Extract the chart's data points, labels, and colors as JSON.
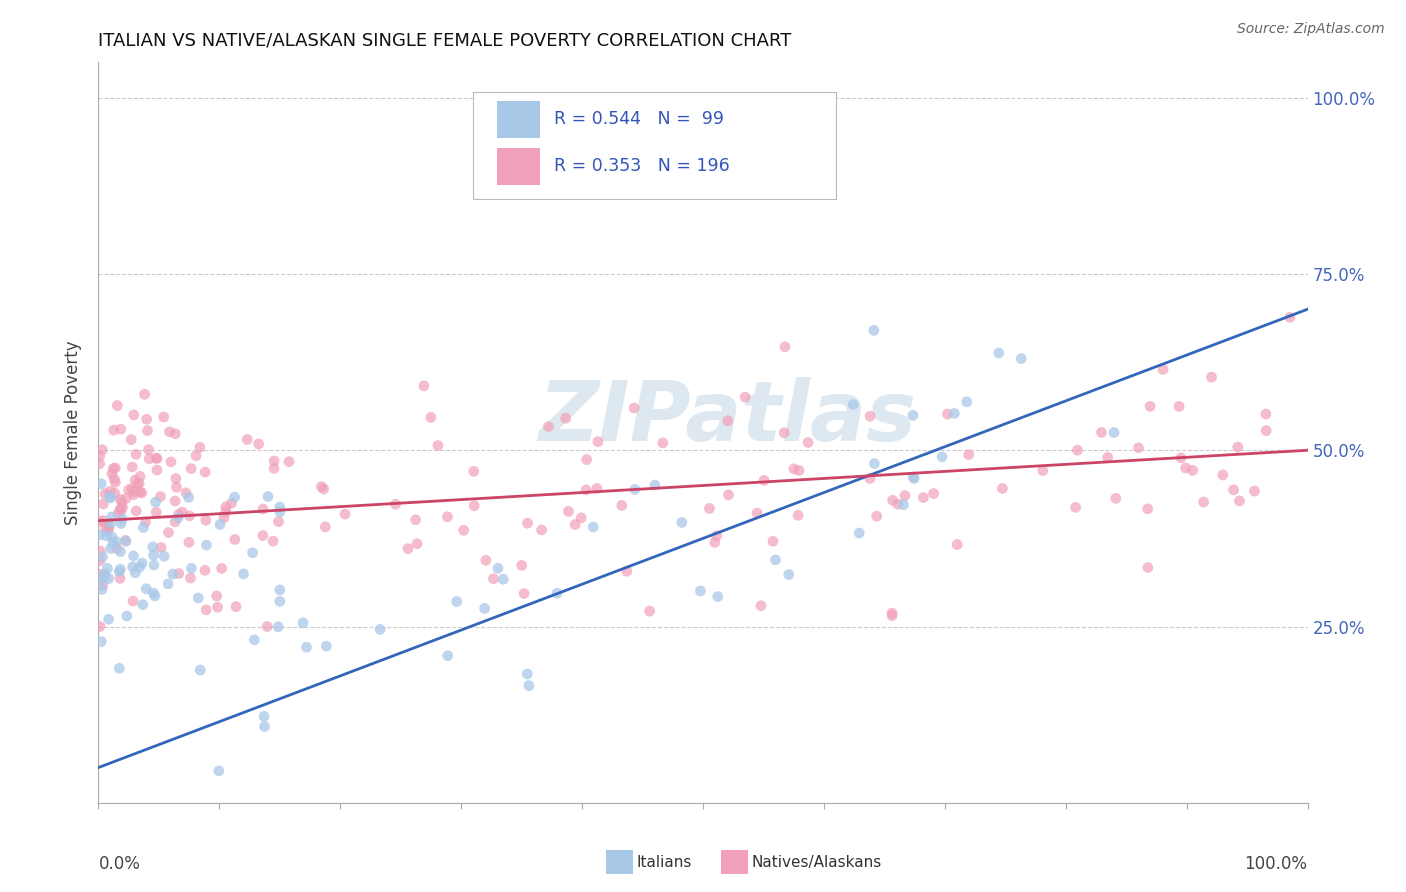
{
  "title": "ITALIAN VS NATIVE/ALASKAN SINGLE FEMALE POVERTY CORRELATION CHART",
  "source": "Source: ZipAtlas.com",
  "ylabel": "Single Female Poverty",
  "ytick_labels": [
    "25.0%",
    "50.0%",
    "75.0%",
    "100.0%"
  ],
  "ytick_vals": [
    0.25,
    0.5,
    0.75,
    1.0
  ],
  "color_italian": "#a8c8e8",
  "color_native": "#f0a0b8",
  "color_line_italian": "#3366bb",
  "color_line_native": "#cc4466",
  "color_text_legend": "#3355bb",
  "color_ytick": "#4466bb",
  "background": "#ffffff",
  "grid_color": "#cccccc",
  "watermark_color": "#dde8f0",
  "legend_r1": "R = 0.544",
  "legend_n1": "N =  99",
  "legend_r2": "R = 0.353",
  "legend_n2": "N = 196"
}
